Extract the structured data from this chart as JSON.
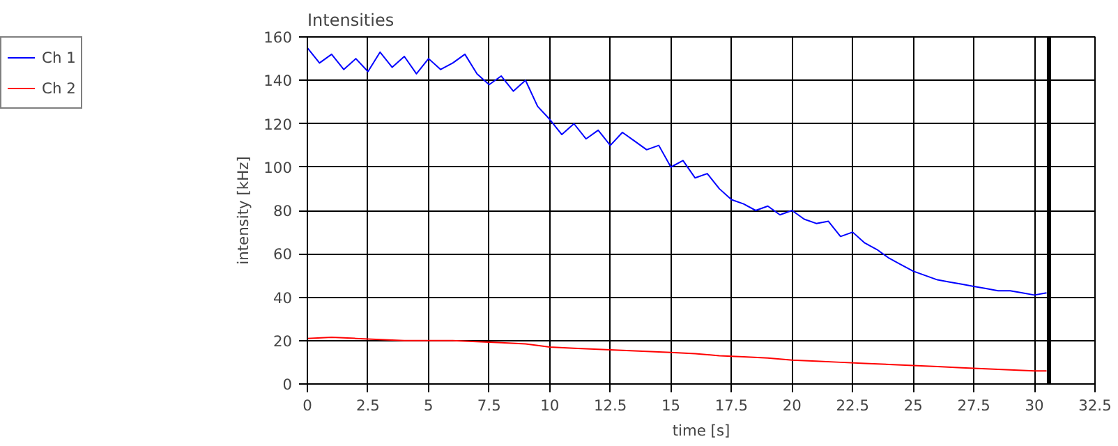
{
  "chart_data": {
    "type": "line",
    "title": "Intensities",
    "xlabel": "time [s]",
    "ylabel": "intensity [kHz]",
    "xlim": [
      0,
      32.5
    ],
    "ylim": [
      0,
      160
    ],
    "xticks": [
      0,
      2.5,
      5,
      7.5,
      10,
      12.5,
      15,
      17.5,
      20,
      22.5,
      25,
      27.5,
      30,
      32.5
    ],
    "yticks": [
      0,
      20,
      40,
      60,
      80,
      100,
      120,
      140,
      160
    ],
    "grid": true,
    "legend": "top left",
    "line_style": "solid",
    "ref_lines": [
      {
        "axis": "x",
        "value": 30.6,
        "color": "#000000"
      }
    ],
    "series": [
      {
        "name": "Ch 1",
        "color": "#0000ff",
        "x": [
          0,
          0.5,
          1,
          1.5,
          2,
          2.5,
          3,
          3.5,
          4,
          4.5,
          5,
          5.5,
          6,
          6.5,
          7,
          7.5,
          8,
          8.5,
          9,
          9.5,
          10,
          10.5,
          11,
          11.5,
          12,
          12.5,
          13,
          13.5,
          14,
          14.5,
          15,
          15.5,
          16,
          16.5,
          17,
          17.5,
          18,
          18.5,
          19,
          19.5,
          20,
          20.5,
          21,
          21.5,
          22,
          22.5,
          23,
          23.5,
          24,
          24.5,
          25,
          25.5,
          26,
          26.5,
          27,
          27.5,
          28,
          28.5,
          29,
          29.5,
          30,
          30.5
        ],
        "values": [
          155,
          148,
          152,
          145,
          150,
          144,
          153,
          146,
          151,
          143,
          150,
          145,
          148,
          152,
          143,
          138,
          142,
          135,
          140,
          128,
          122,
          115,
          120,
          113,
          117,
          110,
          116,
          112,
          108,
          110,
          100,
          103,
          95,
          97,
          90,
          85,
          83,
          80,
          82,
          78,
          80,
          76,
          74,
          75,
          68,
          70,
          65,
          62,
          58,
          55,
          52,
          50,
          48,
          47,
          46,
          45,
          44,
          43,
          43,
          42,
          41,
          42
        ]
      },
      {
        "name": "Ch 2",
        "color": "#ff0000",
        "x": [
          0,
          1,
          2,
          3,
          4,
          5,
          6,
          7,
          8,
          9,
          10,
          11,
          12,
          13,
          14,
          15,
          16,
          17,
          18,
          19,
          20,
          21,
          22,
          23,
          24,
          25,
          26,
          27,
          28,
          29,
          30,
          30.5
        ],
        "values": [
          21,
          21.5,
          21,
          20.5,
          20,
          20,
          20,
          19.5,
          19,
          18.5,
          17,
          16.5,
          16,
          15.5,
          15,
          14.5,
          14,
          13,
          12.5,
          12,
          11,
          10.5,
          10,
          9.5,
          9,
          8.5,
          8,
          7.5,
          7,
          6.5,
          6,
          6
        ]
      }
    ]
  }
}
